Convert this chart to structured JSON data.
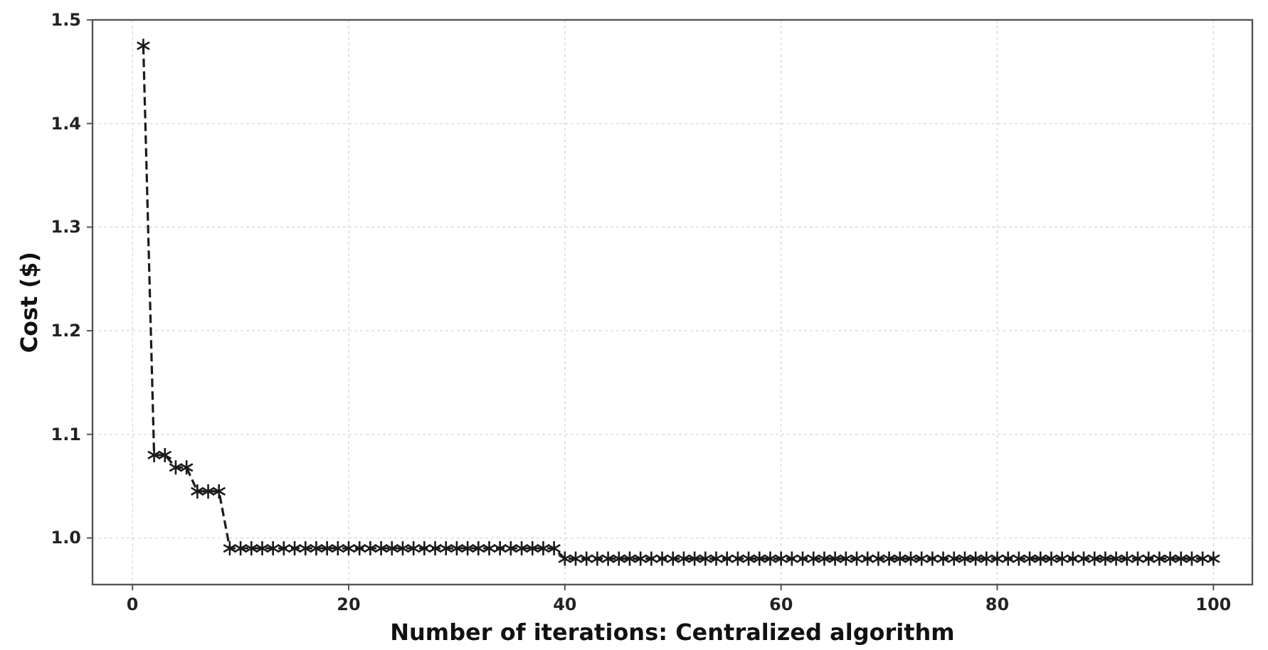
{
  "chart_data": {
    "type": "line",
    "xlabel": "Number of iterations: Centralized algorithm",
    "ylabel": "Cost ($)",
    "x": [
      1,
      2,
      3,
      4,
      5,
      6,
      7,
      8,
      9,
      10,
      11,
      12,
      13,
      14,
      15,
      16,
      17,
      18,
      19,
      20,
      21,
      22,
      23,
      24,
      25,
      26,
      27,
      28,
      29,
      30,
      31,
      32,
      33,
      34,
      35,
      36,
      37,
      38,
      39,
      40,
      41,
      42,
      43,
      44,
      45,
      46,
      47,
      48,
      49,
      50,
      51,
      52,
      53,
      54,
      55,
      56,
      57,
      58,
      59,
      60,
      61,
      62,
      63,
      64,
      65,
      66,
      67,
      68,
      69,
      70,
      71,
      72,
      73,
      74,
      75,
      76,
      77,
      78,
      79,
      80,
      81,
      82,
      83,
      84,
      85,
      86,
      87,
      88,
      89,
      90,
      91,
      92,
      93,
      94,
      95,
      96,
      97,
      98,
      99,
      100
    ],
    "series": [
      {
        "color": "#1a1a1a",
        "values": [
          1.475,
          1.08,
          1.08,
          1.068,
          1.068,
          1.045,
          1.045,
          1.045,
          0.99,
          0.99,
          0.99,
          0.99,
          0.99,
          0.99,
          0.99,
          0.99,
          0.99,
          0.99,
          0.99,
          0.99,
          0.99,
          0.99,
          0.99,
          0.99,
          0.99,
          0.99,
          0.99,
          0.99,
          0.99,
          0.99,
          0.99,
          0.99,
          0.99,
          0.99,
          0.99,
          0.99,
          0.99,
          0.99,
          0.99,
          0.98,
          0.98,
          0.98,
          0.98,
          0.98,
          0.98,
          0.98,
          0.98,
          0.98,
          0.98,
          0.98,
          0.98,
          0.98,
          0.98,
          0.98,
          0.98,
          0.98,
          0.98,
          0.98,
          0.98,
          0.98,
          0.98,
          0.98,
          0.98,
          0.98,
          0.98,
          0.98,
          0.98,
          0.98,
          0.98,
          0.98,
          0.98,
          0.98,
          0.98,
          0.98,
          0.98,
          0.98,
          0.98,
          0.98,
          0.98,
          0.98,
          0.98,
          0.98,
          0.98,
          0.98,
          0.98,
          0.98,
          0.98,
          0.98,
          0.98,
          0.98,
          0.98,
          0.98,
          0.98,
          0.98,
          0.98,
          0.98,
          0.98,
          0.98,
          0.98,
          0.98
        ]
      }
    ],
    "xlim": [
      -3.7,
      103.6
    ],
    "xticks": [
      0,
      20,
      40,
      60,
      80,
      100
    ],
    "ylim": [
      0.955,
      1.5
    ],
    "yticks": [
      {
        "value": 1.0,
        "label": "1.0"
      },
      1.1,
      1.2,
      1.3,
      1.4,
      1.5
    ],
    "grid": true,
    "marker": "cross",
    "line_style": "dashed"
  }
}
